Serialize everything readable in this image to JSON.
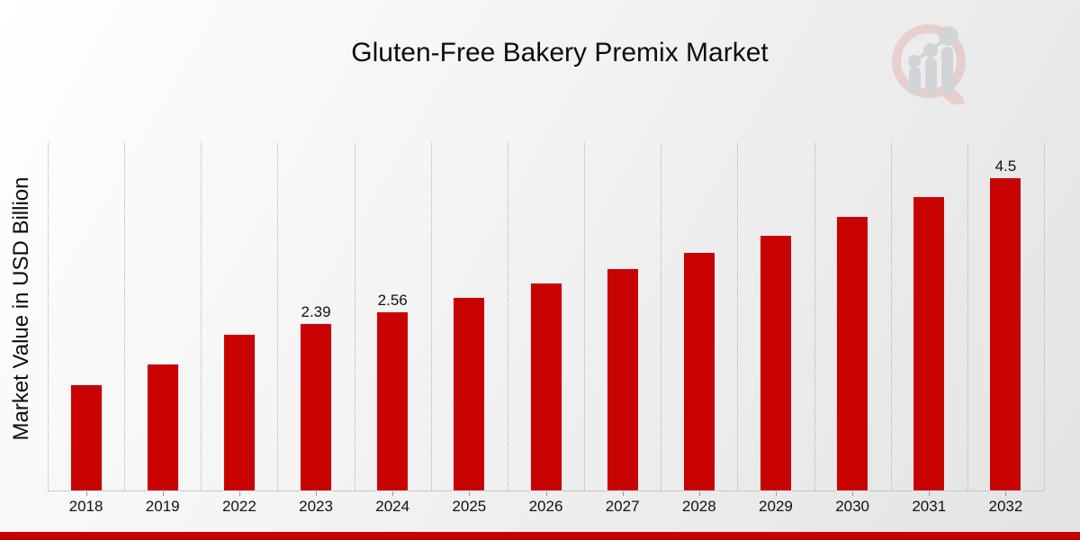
{
  "chart": {
    "title": "Gluten-Free Bakery Premix Market",
    "y_axis_label": "Market Value in USD Billion"
  },
  "watermark": {
    "name": "market-research-chart-logo",
    "ring_color": "#d98f8f",
    "bar_color": "#9aa0a8"
  },
  "colors": {
    "bar": "#c80201",
    "bottom_band": "#c60404",
    "gridline": "#b2b2b2",
    "axis": "#c6c6c6",
    "text": "#0d0d0d"
  },
  "chart_data": {
    "type": "bar",
    "title": "Gluten-Free Bakery Premix Market",
    "xlabel": "",
    "ylabel": "Market Value in USD Billion",
    "categories": [
      "2018",
      "2019",
      "2022",
      "2023",
      "2024",
      "2025",
      "2026",
      "2027",
      "2028",
      "2029",
      "2030",
      "2031",
      "2032"
    ],
    "values": [
      1.52,
      1.81,
      2.24,
      2.39,
      2.56,
      2.77,
      2.98,
      3.19,
      3.42,
      3.67,
      3.94,
      4.22,
      4.5
    ],
    "data_labels": [
      null,
      null,
      null,
      "2.39",
      "2.56",
      null,
      null,
      null,
      null,
      null,
      null,
      null,
      "4.5"
    ],
    "bar_color": "#c80201",
    "ylim": [
      0,
      5.0
    ],
    "grid": "vertical-dotted-column-separators",
    "legend": "none",
    "units": "USD Billion"
  }
}
